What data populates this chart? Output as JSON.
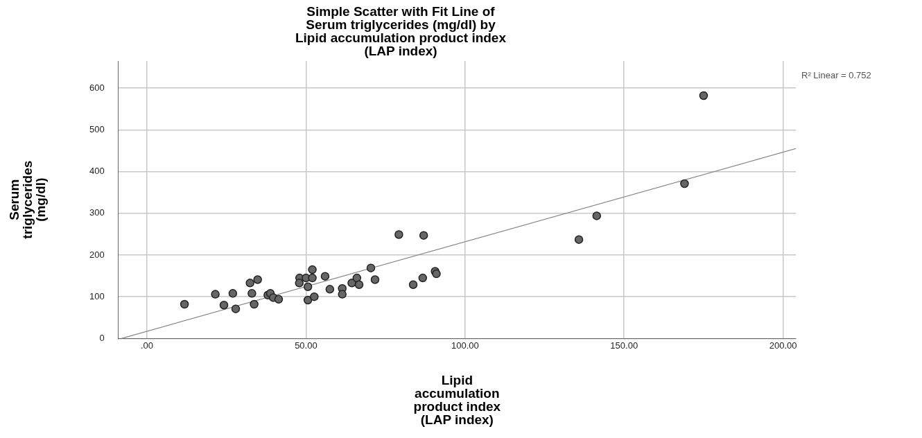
{
  "chart_data": {
    "type": "scatter",
    "title": "Simple Scatter with Fit Line of Serum triglycerides (mg/dl) by Lipid accumulation product index (LAP index)",
    "xlabel": "Lipid accumulation product index (LAP index)",
    "ylabel": "Serum triglycerides (mg/dl)",
    "annotations": [
      "R² Linear = 0.752"
    ],
    "series": [
      {
        "marker": "circle",
        "color": "#666666",
        "x": [
          11.8,
          21.5,
          24.2,
          27,
          27.9,
          32.4,
          33,
          33.7,
          34.8,
          38,
          38.8,
          39.7,
          41.4,
          48,
          47.9,
          50,
          50.6,
          50.6,
          52,
          52,
          52.6,
          56,
          57.5,
          61.4,
          61.4,
          64.4,
          66,
          66.7,
          70.4,
          71.7,
          79.2,
          83.7,
          87,
          86.7,
          90.6,
          91,
          135.8,
          141.4,
          169,
          175
        ],
        "values": [
          82,
          106,
          80,
          108,
          71,
          133,
          108,
          82,
          141,
          104,
          108,
          98,
          94,
          145,
          133,
          145,
          124,
          92,
          145,
          165,
          100,
          149,
          118,
          120,
          106,
          133,
          145,
          129,
          169,
          141,
          249,
          129,
          247,
          145,
          161,
          155,
          237,
          294,
          371,
          582
        ]
      },
      {
        "type": "line",
        "marker": "none",
        "color": "#888888",
        "x": [
          -8,
          204
        ],
        "values": [
          0,
          455
        ]
      }
    ],
    "xlim": [
      -9,
      204
    ],
    "ylim": [
      0,
      665
    ],
    "xticks": [
      {
        "value": 0,
        "label": ".00"
      },
      {
        "value": 50,
        "label": "50.00"
      },
      {
        "value": 100,
        "label": "100.00"
      },
      {
        "value": 150,
        "label": "150.00"
      },
      {
        "value": 200,
        "label": "200.00"
      }
    ],
    "yticks": [
      0,
      100,
      200,
      300,
      400,
      500,
      600
    ],
    "grid": true,
    "legend": false
  }
}
